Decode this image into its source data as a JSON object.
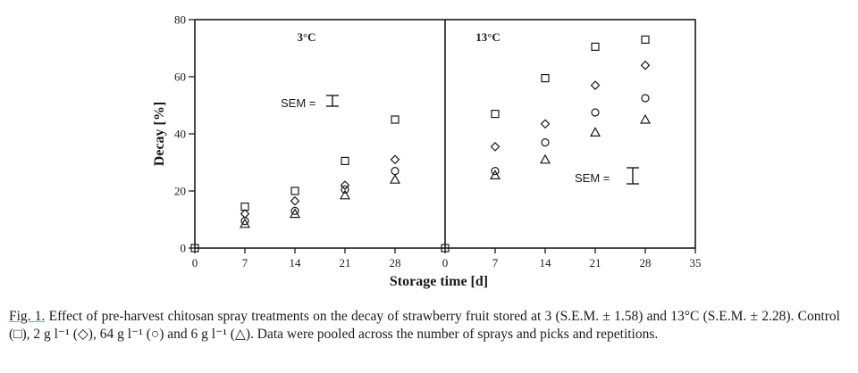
{
  "chart_data": {
    "type": "scatter",
    "title": "",
    "xlabel": "Storage time [d]",
    "ylabel": "Decay [%]",
    "ylim": [
      0,
      80
    ],
    "yticks": [
      0,
      20,
      40,
      60,
      80
    ],
    "grid": false,
    "legend_position": "caption",
    "panels": [
      {
        "label": "3°C",
        "xlim": [
          0,
          35
        ],
        "xticks": [
          0,
          7,
          14,
          21,
          28
        ],
        "x": [
          0,
          7,
          14,
          21,
          28
        ],
        "sem_label": "SEM =",
        "sem_value": 1.58,
        "series": [
          {
            "name": "Control",
            "marker": "square",
            "values": [
              0,
              14.5,
              20,
              30.5,
              45
            ]
          },
          {
            "name": "2 g l-1",
            "marker": "diamond",
            "values": [
              null,
              12,
              16.5,
              22,
              31
            ]
          },
          {
            "name": "64 g l-1",
            "marker": "circle",
            "values": [
              null,
              9.5,
              13,
              20.5,
              27
            ]
          },
          {
            "name": "6 g l-1",
            "marker": "triangle",
            "values": [
              null,
              8.5,
              12,
              18.5,
              24
            ]
          }
        ]
      },
      {
        "label": "13°C",
        "xlim": [
          0,
          35
        ],
        "xticks": [
          0,
          7,
          14,
          21,
          28,
          35
        ],
        "x": [
          0,
          7,
          14,
          21,
          28
        ],
        "sem_label": "SEM =",
        "sem_value": 2.28,
        "series": [
          {
            "name": "Control",
            "marker": "square",
            "values": [
              0,
              47,
              59.5,
              70.5,
              73
            ]
          },
          {
            "name": "2 g l-1",
            "marker": "diamond",
            "values": [
              null,
              35.5,
              43.5,
              57,
              64
            ]
          },
          {
            "name": "64 g l-1",
            "marker": "circle",
            "values": [
              null,
              27,
              37,
              47.5,
              52.5
            ]
          },
          {
            "name": "6 g l-1",
            "marker": "triangle",
            "values": [
              null,
              25.5,
              31,
              40.5,
              45
            ]
          }
        ]
      }
    ]
  },
  "caption": {
    "figref": "Fig. 1.",
    "text": " Effect of pre-harvest chitosan spray treatments on the decay of strawberry fruit stored at 3 (S.E.M. ± 1.58) and 13°C (S.E.M. ± 2.28). Control (□), 2 g l⁻¹ (◇), 64 g l⁻¹ (○) and 6 g l⁻¹ (△). Data were pooled across the number of sprays and picks and repetitions."
  }
}
